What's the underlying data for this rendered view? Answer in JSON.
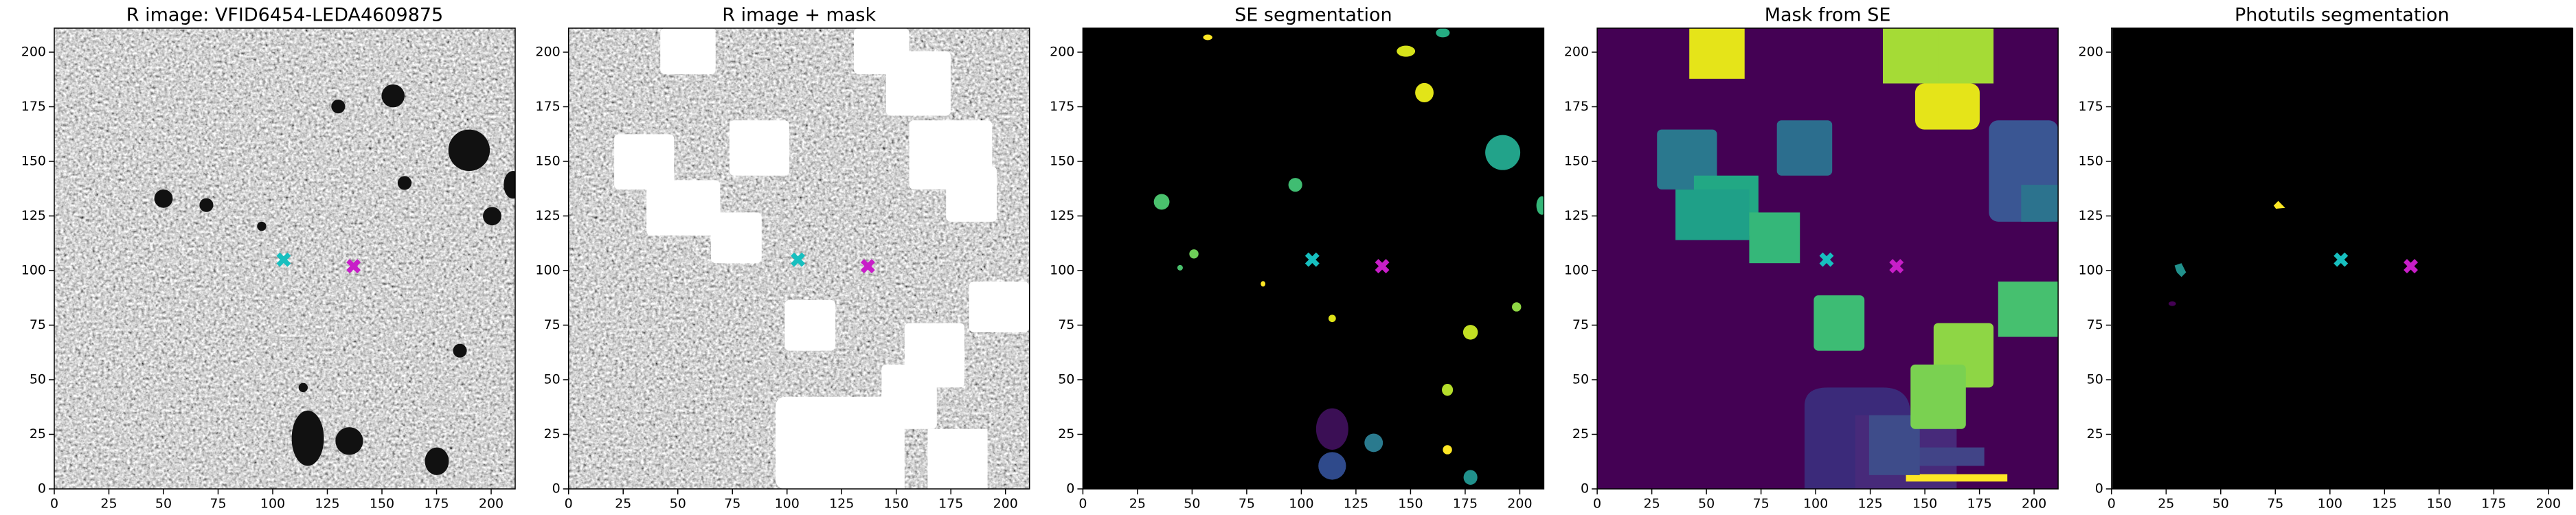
{
  "chart_data": [
    {
      "type": "image",
      "title": "R image: VFID6454-LEDA4609875",
      "xlim": [
        0,
        211
      ],
      "ylim": [
        0,
        211
      ],
      "xticks": [
        0,
        25,
        50,
        75,
        100,
        125,
        150,
        175,
        200
      ],
      "yticks": [
        0,
        25,
        50,
        75,
        100,
        125,
        150,
        175,
        200
      ],
      "points": {
        "x": [
          105,
          137
        ],
        "values": [
          105,
          102
        ],
        "colors": [
          "#17bfbf",
          "#c81ec8"
        ]
      }
    },
    {
      "type": "image",
      "title": "R image + mask",
      "xlim": [
        0,
        211
      ],
      "ylim": [
        0,
        211
      ],
      "xticks": [
        0,
        25,
        50,
        75,
        100,
        125,
        150,
        175,
        200
      ],
      "yticks": [
        0,
        25,
        50,
        75,
        100,
        125,
        150,
        175,
        200
      ],
      "points": {
        "x": [
          105,
          137
        ],
        "values": [
          105,
          102
        ],
        "colors": [
          "#17bfbf",
          "#c81ec8"
        ]
      }
    },
    {
      "type": "image",
      "title": "SE segmentation",
      "xlim": [
        0,
        211
      ],
      "ylim": [
        0,
        211
      ],
      "xticks": [
        0,
        25,
        50,
        75,
        100,
        125,
        150,
        175,
        200
      ],
      "yticks": [
        0,
        25,
        50,
        75,
        100,
        125,
        150,
        175,
        200
      ],
      "points": {
        "x": [
          105,
          137
        ],
        "values": [
          105,
          102
        ],
        "colors": [
          "#17bfbf",
          "#c81ec8"
        ]
      }
    },
    {
      "type": "image",
      "title": "Mask from SE",
      "xlim": [
        0,
        211
      ],
      "ylim": [
        0,
        211
      ],
      "xticks": [
        0,
        25,
        50,
        75,
        100,
        125,
        150,
        175,
        200
      ],
      "yticks": [
        0,
        25,
        50,
        75,
        100,
        125,
        150,
        175,
        200
      ],
      "points": {
        "x": [
          105,
          137
        ],
        "values": [
          105,
          102
        ],
        "colors": [
          "#17bfbf",
          "#c81ec8"
        ]
      }
    },
    {
      "type": "image",
      "title": "Photutils segmentation",
      "xlim": [
        0,
        211
      ],
      "ylim": [
        0,
        211
      ],
      "xticks": [
        0,
        25,
        50,
        75,
        100,
        125,
        150,
        175,
        200
      ],
      "yticks": [
        0,
        25,
        50,
        75,
        100,
        125,
        150,
        175,
        200
      ],
      "points": {
        "x": [
          105,
          137
        ],
        "values": [
          105,
          102
        ],
        "colors": [
          "#17bfbf",
          "#c81ec8"
        ]
      }
    }
  ]
}
